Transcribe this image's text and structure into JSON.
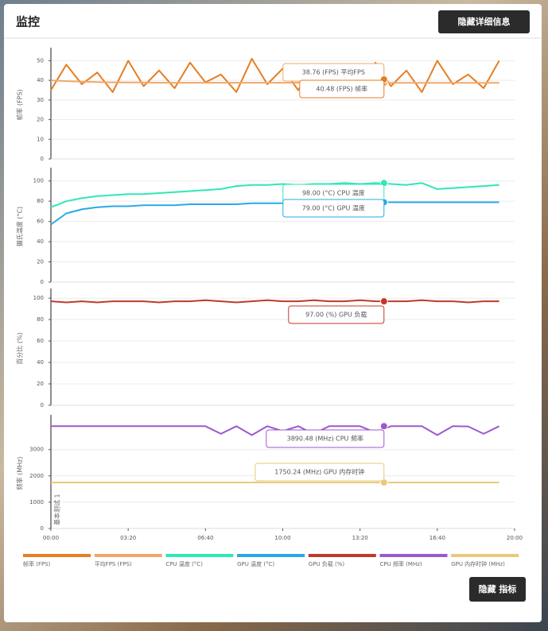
{
  "header": {
    "title": "监控",
    "button": "隐藏详细信息"
  },
  "footer": {
    "button": "隐藏 指标"
  },
  "chart_data": [
    {
      "type": "line",
      "y_label": "帧率 (FPS)",
      "x": [
        0,
        40,
        80,
        120,
        160,
        200,
        240,
        280,
        320,
        360,
        400,
        440,
        480,
        520,
        560,
        600,
        640,
        680,
        720,
        760,
        800,
        840,
        880,
        920,
        960,
        1000,
        1040,
        1080,
        1120,
        1160
      ],
      "xlim": [
        0,
        1200
      ],
      "ylim": [
        0,
        55
      ],
      "yticks": [
        0,
        10,
        20,
        30,
        40,
        50
      ],
      "grid": true,
      "series": [
        {
          "name": "帧率 (FPS)",
          "color": "#e67e22",
          "values": [
            35,
            48,
            38,
            44,
            34,
            50,
            37,
            45,
            36,
            49,
            39,
            43,
            34,
            51,
            38,
            46,
            35,
            48,
            40,
            44,
            36,
            49,
            37,
            45,
            34,
            50,
            38,
            43,
            36,
            50
          ]
        },
        {
          "name": "平均FPS (FPS)",
          "color": "#f0a868",
          "values": [
            40,
            39.6,
            39.3,
            39.1,
            39,
            38.9,
            38.9,
            38.8,
            38.8,
            38.8,
            38.8,
            38.8,
            38.8,
            38.8,
            38.8,
            38.8,
            38.8,
            38.8,
            38.8,
            38.8,
            38.8,
            38.8,
            38.76,
            38.76,
            38.76,
            38.76,
            38.76,
            38.76,
            38.76,
            38.76
          ]
        }
      ],
      "tooltips": [
        {
          "x": 862,
          "value": 38.76,
          "value_label": "38.76 (FPS) 平均FPS",
          "color": "#f0a868"
        },
        {
          "x": 862,
          "value": 40.48,
          "value_label": "40.48 (FPS) 帧率",
          "color": "#e67e22"
        }
      ]
    },
    {
      "type": "line",
      "y_label": "摄氏温度 (°C)",
      "x": [
        0,
        40,
        80,
        120,
        160,
        200,
        240,
        280,
        320,
        360,
        400,
        440,
        480,
        520,
        560,
        600,
        640,
        680,
        720,
        760,
        800,
        840,
        880,
        920,
        960,
        1000,
        1040,
        1080,
        1120,
        1160
      ],
      "xlim": [
        0,
        1200
      ],
      "ylim": [
        0,
        110
      ],
      "yticks": [
        0,
        20,
        40,
        60,
        80,
        100
      ],
      "grid": true,
      "series": [
        {
          "name": "CPU 温度 (°C)",
          "color": "#2ee8b6",
          "values": [
            74,
            80,
            83,
            85,
            86,
            87,
            87,
            88,
            89,
            90,
            91,
            92,
            95,
            96,
            96,
            97,
            96,
            97,
            97,
            98,
            97,
            98,
            97,
            96,
            98,
            92,
            93,
            94,
            95,
            96
          ]
        },
        {
          "name": "GPU 温度 (°C)",
          "color": "#2aa8e8",
          "values": [
            57,
            68,
            72,
            74,
            75,
            75,
            76,
            76,
            76,
            77,
            77,
            77,
            77,
            78,
            78,
            78,
            78,
            78,
            79,
            79,
            79,
            79,
            79,
            79,
            79,
            79,
            79,
            79,
            79,
            79
          ]
        }
      ],
      "tooltips": [
        {
          "x": 862,
          "value": 98,
          "value_label": "98.00 (°C) CPU 温度",
          "color": "#2ee8b6"
        },
        {
          "x": 862,
          "value": 79,
          "value_label": "79.00 (°C) GPU 温度",
          "color": "#2aa8e8"
        }
      ]
    },
    {
      "type": "line",
      "y_label": "百分比 (%)",
      "x": [
        0,
        40,
        80,
        120,
        160,
        200,
        240,
        280,
        320,
        360,
        400,
        440,
        480,
        520,
        560,
        600,
        640,
        680,
        720,
        760,
        800,
        840,
        880,
        920,
        960,
        1000,
        1040,
        1080,
        1120,
        1160
      ],
      "xlim": [
        0,
        1200
      ],
      "ylim": [
        0,
        106
      ],
      "yticks": [
        0,
        20,
        40,
        60,
        80,
        100
      ],
      "grid": true,
      "series": [
        {
          "name": "GPU 负载 (%)",
          "color": "#c0392b",
          "values": [
            97,
            96,
            97,
            96,
            97,
            97,
            97,
            96,
            97,
            97,
            98,
            97,
            96,
            97,
            98,
            97,
            97,
            98,
            97,
            97,
            98,
            97,
            97,
            97,
            98,
            97,
            97,
            96,
            97,
            97
          ]
        }
      ],
      "tooltips": [
        {
          "x": 862,
          "value": 97,
          "value_label": "97.00 (%) GPU 负载",
          "color": "#c0392b"
        }
      ]
    },
    {
      "type": "line",
      "y_label": "频率 (MHz)",
      "x": [
        0,
        40,
        80,
        120,
        160,
        200,
        240,
        280,
        320,
        360,
        400,
        440,
        480,
        520,
        560,
        600,
        640,
        680,
        720,
        760,
        800,
        840,
        880,
        920,
        960,
        1000,
        1040,
        1080,
        1120,
        1160
      ],
      "xlim": [
        0,
        1200
      ],
      "ylim": [
        0,
        4200
      ],
      "yticks": [
        0,
        1000,
        2000,
        3000
      ],
      "grid": true,
      "xticks": [
        {
          "value": 0,
          "label": "00:00"
        },
        {
          "value": 200,
          "label": "03:20"
        },
        {
          "value": 400,
          "label": "06:40"
        },
        {
          "value": 600,
          "label": "10:00"
        },
        {
          "value": 800,
          "label": "13:20"
        },
        {
          "value": 1000,
          "label": "16:40"
        },
        {
          "value": 1200,
          "label": "20:00"
        }
      ],
      "annotation": "基本测试 1",
      "series": [
        {
          "name": "CPU 频率 (MHz)",
          "color": "#9b59d0",
          "values": [
            3890,
            3890,
            3890,
            3890,
            3890,
            3890,
            3890,
            3890,
            3890,
            3890,
            3890,
            3600,
            3890,
            3550,
            3890,
            3700,
            3890,
            3600,
            3890,
            3890,
            3890,
            3650,
            3890,
            3890,
            3890,
            3550,
            3890,
            3880,
            3600,
            3890
          ]
        },
        {
          "name": "GPU 内存时钟 (MHz)",
          "color": "#e8c97a",
          "values": [
            1750.24,
            1750.24,
            1750.24,
            1750.24,
            1750.24,
            1750.24,
            1750.24,
            1750.24,
            1750.24,
            1750.24,
            1750.24,
            1750.24,
            1750.24,
            1750.24,
            1750.24,
            1750.24,
            1750.24,
            1750.24,
            1750.24,
            1750.24,
            1750.24,
            1750.24,
            1750.24,
            1750.24,
            1750.24,
            1750.24,
            1750.24,
            1750.24,
            1750.24,
            1750.24
          ]
        }
      ],
      "tooltips": [
        {
          "x": 862,
          "value": 3890.48,
          "value_label": "3890.48 (MHz) CPU 频率",
          "color": "#9b59d0"
        },
        {
          "x": 862,
          "value": 1750.24,
          "value_label": "1750.24 (MHz) GPU 内存时钟",
          "color": "#e8c97a"
        }
      ]
    }
  ]
}
